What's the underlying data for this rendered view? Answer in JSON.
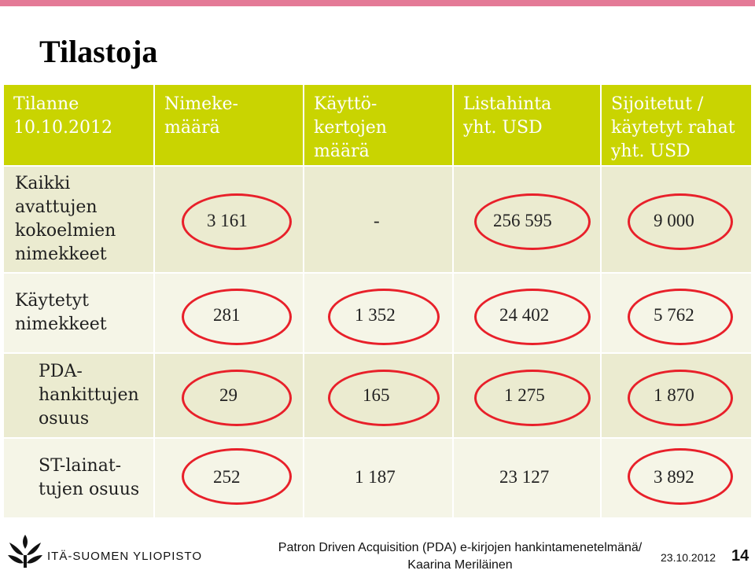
{
  "title": "Tilastoja",
  "table": {
    "corner": [
      "Tilanne",
      "10.10.2012"
    ],
    "headers": [
      [
        "Nimeke-",
        "määrä"
      ],
      [
        "Käyttö-",
        "kertojen",
        "määrä"
      ],
      [
        "Listahinta",
        "yht. USD"
      ],
      [
        "Sijoitetut /",
        "käytetyt rahat",
        "yht. USD"
      ]
    ],
    "rows": [
      {
        "label": [
          "Kaikki",
          "avattujen",
          "kokoelmien",
          "nimekkeet"
        ],
        "values": [
          "3 161",
          "-",
          "256 595",
          "9 000"
        ]
      },
      {
        "label": [
          "Käytetyt",
          "nimekkeet"
        ],
        "values": [
          "281",
          "1 352",
          "24 402",
          "5 762"
        ]
      },
      {
        "label": [
          "PDA-",
          "hankittujen",
          "osuus"
        ],
        "values": [
          "29",
          "165",
          "1 275",
          "1 870"
        ]
      },
      {
        "label": [
          "ST-lainat-",
          "tujen osuus"
        ],
        "values": [
          "252",
          "1 187",
          "23 127",
          "3 892"
        ]
      }
    ]
  },
  "colors": {
    "header": "#c9d401",
    "highlight": "#e8202a",
    "topbar": "#e47a97"
  },
  "footer": {
    "logo_icon": "flower-logo-icon",
    "university": "ITÄ-SUOMEN YLIOPISTO",
    "text_line1": "Patron Driven Acquisition (PDA) e-kirjojen hankintamenetelmänä/",
    "text_line2": "Kaarina Meriläinen",
    "date": "23.10.2012",
    "page": "14"
  }
}
